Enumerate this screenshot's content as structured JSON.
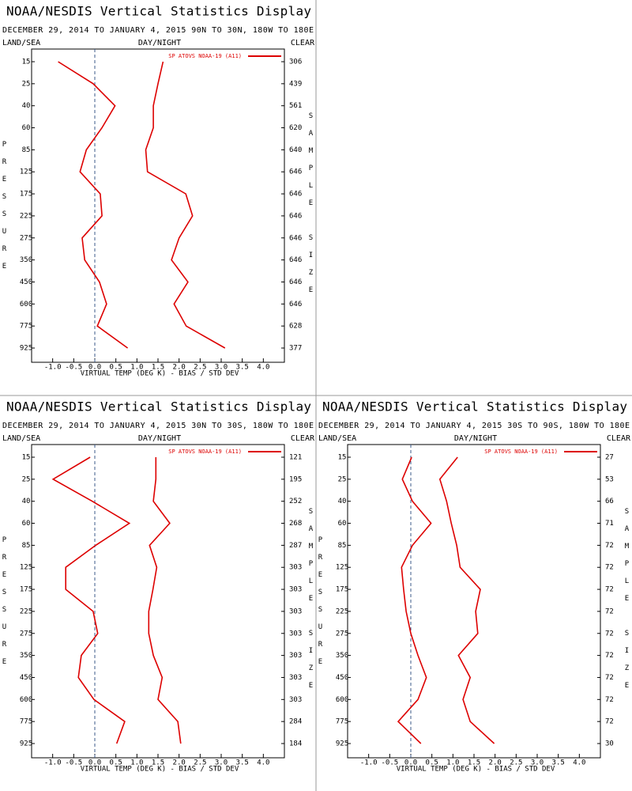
{
  "chart_data": [
    {
      "type": "line",
      "title": "NOAA/NESDIS Vertical Statistics Display",
      "subtitle": "DECEMBER 29, 2014 TO JANUARY 4, 2015  90N TO 30N, 180W TO 180E",
      "left_label": "LAND/SEA",
      "center_label": "DAY/NIGHT",
      "right_label": "CLEAR",
      "y_label": "PRESSURE",
      "y2_label": "SAMPLE SIZE",
      "x_label": "VIRTUAL TEMP (DEG K) - BIAS / STD DEV",
      "categories": [
        15,
        25,
        40,
        60,
        85,
        125,
        175,
        225,
        275,
        350,
        450,
        600,
        775,
        925
      ],
      "sample_size": [
        306,
        439,
        561,
        620,
        640,
        646,
        646,
        646,
        646,
        646,
        646,
        646,
        628,
        377
      ],
      "xlim": [
        -1.5,
        4.5
      ],
      "xticks": [
        {
          "value": -1.0,
          "label": "-1.0"
        },
        {
          "value": -0.5,
          "label": "-0.5"
        },
        {
          "value": 0,
          "label": "0.0"
        },
        {
          "value": 0.5,
          "label": "0.5"
        },
        {
          "value": 1.0,
          "label": "1.0"
        },
        {
          "value": 1.5,
          "label": "1.5"
        },
        {
          "value": 2.0,
          "label": "2.0"
        },
        {
          "value": 2.5,
          "label": "2.5"
        },
        {
          "value": 3.0,
          "label": "3.0"
        },
        {
          "value": 3.5,
          "label": "3.5"
        },
        {
          "value": 4.0,
          "label": "4.0"
        }
      ],
      "legend": "upper right",
      "series": [
        {
          "name": "SP ATOVS NOAA-19 (A11)",
          "color": "#dd0000",
          "values": [
            -0.87,
            -0.04,
            0.48,
            0.17,
            -0.2,
            -0.35,
            0.13,
            0.17,
            -0.3,
            -0.24,
            0.11,
            0.28,
            0.06,
            0.78
          ]
        },
        {
          "color": "#dd0000",
          "values": [
            1.62,
            1.5,
            1.39,
            1.39,
            1.21,
            1.25,
            2.16,
            2.32,
            2.0,
            1.82,
            2.21,
            1.88,
            2.17,
            3.09
          ]
        }
      ]
    },
    {
      "type": "line",
      "title": "NOAA/NESDIS Vertical Statistics Display",
      "subtitle": "DECEMBER 29, 2014 TO JANUARY 4, 2015  30N TO 30S, 180W TO 180E",
      "left_label": "LAND/SEA",
      "center_label": "DAY/NIGHT",
      "right_label": "CLEAR",
      "y_label": "PRESSURE",
      "y2_label": "SAMPLE SIZE",
      "x_label": "VIRTUAL TEMP (DEG K) - BIAS / STD DEV",
      "categories": [
        15,
        25,
        40,
        60,
        85,
        125,
        175,
        225,
        275,
        350,
        450,
        600,
        775,
        925
      ],
      "sample_size": [
        121,
        195,
        252,
        268,
        287,
        303,
        303,
        303,
        303,
        303,
        303,
        303,
        284,
        184
      ],
      "xlim": [
        -1.5,
        4.5
      ],
      "xticks": [
        {
          "value": -1.0,
          "label": "-1.0"
        },
        {
          "value": -0.5,
          "label": "-0.5"
        },
        {
          "value": 0,
          "label": "0.0"
        },
        {
          "value": 0.5,
          "label": "0.5"
        },
        {
          "value": 1.0,
          "label": "1.0"
        },
        {
          "value": 1.5,
          "label": "1.5"
        },
        {
          "value": 2.0,
          "label": "2.0"
        },
        {
          "value": 2.5,
          "label": "2.5"
        },
        {
          "value": 3.0,
          "label": "3.0"
        },
        {
          "value": 3.5,
          "label": "3.5"
        },
        {
          "value": 4.0,
          "label": "4.0"
        }
      ],
      "legend": "upper right",
      "series": [
        {
          "name": "SP ATOVS NOAA-19 (A11)",
          "color": "#dd0000",
          "values": [
            -0.11,
            -0.99,
            -0.06,
            0.82,
            0.02,
            -0.69,
            -0.69,
            -0.04,
            0.07,
            -0.32,
            -0.39,
            -0.02,
            0.71,
            0.52
          ]
        },
        {
          "color": "#dd0000",
          "values": [
            1.45,
            1.45,
            1.39,
            1.78,
            1.3,
            1.47,
            1.38,
            1.28,
            1.28,
            1.39,
            1.6,
            1.5,
            1.97,
            2.04
          ]
        }
      ]
    },
    {
      "type": "line",
      "title": "NOAA/NESDIS Vertical Statistics Display",
      "subtitle": "DECEMBER 29, 2014 TO JANUARY 4, 2015  30S TO 90S, 180W TO 180E",
      "left_label": "LAND/SEA",
      "center_label": "DAY/NIGHT",
      "right_label": "CLEAR",
      "y_label": "PRESSURE",
      "y2_label": "SAMPLE SIZE",
      "x_label": "VIRTUAL TEMP (DEG K) - BIAS / STD DEV",
      "categories": [
        15,
        25,
        40,
        60,
        85,
        125,
        175,
        225,
        275,
        350,
        450,
        600,
        775,
        925
      ],
      "sample_size": [
        27,
        53,
        66,
        71,
        72,
        72,
        72,
        72,
        72,
        72,
        72,
        72,
        72,
        30
      ],
      "xlim": [
        -1.5,
        4.5
      ],
      "xticks": [
        {
          "value": -1.0,
          "label": "-1.0"
        },
        {
          "value": -0.5,
          "label": "-0.5"
        },
        {
          "value": 0,
          "label": "0.0"
        },
        {
          "value": 0.5,
          "label": "0.5"
        },
        {
          "value": 1.0,
          "label": "1.0"
        },
        {
          "value": 1.5,
          "label": "1.5"
        },
        {
          "value": 2.0,
          "label": "2.0"
        },
        {
          "value": 2.5,
          "label": "2.5"
        },
        {
          "value": 3.0,
          "label": "3.0"
        },
        {
          "value": 3.5,
          "label": "3.5"
        },
        {
          "value": 4.0,
          "label": "4.0"
        }
      ],
      "legend": "upper right",
      "series": [
        {
          "name": "SP ATOVS NOAA-19 (A11)",
          "color": "#dd0000",
          "values": [
            0.02,
            -0.2,
            0.04,
            0.48,
            0.04,
            -0.22,
            -0.17,
            -0.11,
            0.0,
            0.17,
            0.37,
            0.17,
            -0.3,
            0.24
          ]
        },
        {
          "color": "#dd0000",
          "values": [
            1.11,
            0.69,
            0.85,
            0.96,
            1.09,
            1.17,
            1.65,
            1.54,
            1.59,
            1.13,
            1.41,
            1.24,
            1.41,
            1.98
          ]
        }
      ]
    }
  ]
}
